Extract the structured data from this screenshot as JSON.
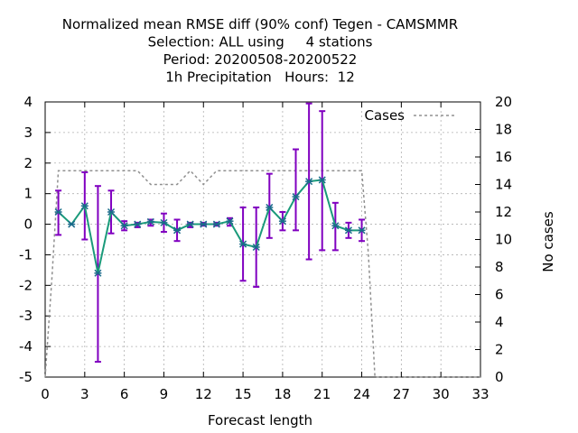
{
  "chart_data": {
    "type": "line",
    "title_lines": [
      "Normalized mean RMSE diff (90% conf) Tegen - CAMSMMR",
      "Selection: ALL using     4 stations",
      "Period: 20200508-20200522",
      "1h Precipitation   Hours:  12"
    ],
    "xlabel": "Forecast length",
    "ylabel": "",
    "y2label": "No cases",
    "xlim": [
      0,
      33
    ],
    "ylim": [
      -5,
      4
    ],
    "y2lim": [
      0,
      20
    ],
    "x_ticks": [
      0,
      3,
      6,
      9,
      12,
      15,
      18,
      21,
      24,
      27,
      30,
      33
    ],
    "y_ticks": [
      -5,
      -4,
      -3,
      -2,
      -1,
      0,
      1,
      2,
      3,
      4
    ],
    "y2_ticks": [
      0,
      2,
      4,
      6,
      8,
      10,
      12,
      14,
      16,
      18,
      20
    ],
    "grid": true,
    "legend_position": "top-right",
    "colors": {
      "series": "#1a9a7a",
      "marker": "#1a6a8a",
      "errorbar": "#8000c0",
      "cases": "#909090",
      "grid": "#b0b0b0"
    },
    "series": [
      {
        "x": [
          1,
          2,
          3,
          4,
          5,
          6,
          7,
          8,
          9,
          10,
          11,
          12,
          13,
          14,
          15,
          16,
          17,
          18,
          19,
          20,
          21,
          22,
          23,
          24
        ],
        "values": [
          0.4,
          0.0,
          0.6,
          -1.6,
          0.4,
          -0.05,
          0.0,
          0.08,
          0.05,
          -0.2,
          0.0,
          0.0,
          0.0,
          0.1,
          -0.65,
          -0.75,
          0.55,
          0.1,
          0.9,
          1.4,
          1.45,
          -0.05,
          -0.2,
          -0.2
        ],
        "err_low": [
          -0.35,
          0.0,
          -0.5,
          -4.5,
          -0.3,
          -0.2,
          -0.1,
          -0.05,
          -0.25,
          -0.55,
          -0.1,
          -0.05,
          -0.05,
          -0.05,
          -1.85,
          -2.05,
          -0.45,
          -0.2,
          -0.2,
          -1.15,
          -0.85,
          -0.85,
          -0.45,
          -0.55
        ],
        "err_high": [
          1.1,
          0.0,
          1.7,
          1.25,
          1.1,
          0.1,
          0.05,
          0.15,
          0.35,
          0.15,
          0.05,
          0.05,
          0.05,
          0.2,
          0.55,
          0.55,
          1.65,
          0.4,
          2.45,
          3.95,
          3.7,
          0.7,
          0.05,
          0.15
        ]
      }
    ],
    "cases": {
      "name": "Cases",
      "x": [
        0,
        0.5,
        1,
        6.5,
        7,
        7.5,
        8,
        9,
        10,
        11,
        12,
        12.5,
        13,
        24,
        24.5,
        25,
        26,
        33
      ],
      "values": [
        0,
        7,
        15,
        15,
        15,
        14.5,
        14,
        14,
        14,
        15,
        14,
        14.5,
        15,
        15,
        9,
        0,
        0,
        0
      ]
    }
  }
}
